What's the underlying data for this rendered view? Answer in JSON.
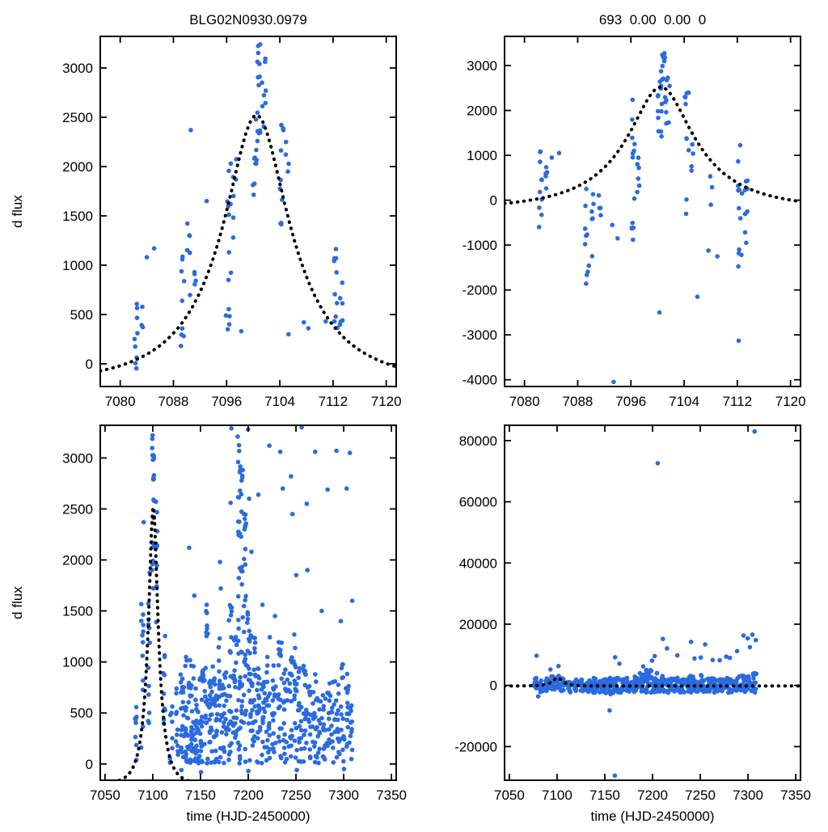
{
  "figure": {
    "background": "#ffffff",
    "style": {
      "point_color": "#2a6be0",
      "model_color": "#000000",
      "point_radius": 2.8,
      "frame_color": "#000000"
    }
  },
  "chart_data": [
    {
      "id": "panel-top-left",
      "type": "scatter",
      "title": "BLG02N0930.0979",
      "xlabel": "",
      "ylabel": "d flux",
      "xlim": [
        7077,
        7121.5
      ],
      "ylim": [
        -230,
        3320
      ],
      "xticks": [
        7080,
        7088,
        7096,
        7104,
        7112,
        7120
      ],
      "yticks": [
        0,
        500,
        1000,
        1500,
        2000,
        2500,
        3000
      ],
      "model": {
        "type": "paczynski",
        "t0": 7100.5,
        "tE": 14,
        "u0": 0.35,
        "fs": 1369,
        "offset": -200
      },
      "clusters_format": [
        "x",
        "xspread",
        "n",
        "ymin",
        "ymax"
      ],
      "clusters": [
        [
          7082.4,
          0.25,
          9,
          -80,
          700
        ],
        [
          7083.3,
          0.15,
          3,
          250,
          650
        ],
        [
          7089.4,
          0.3,
          9,
          150,
          1120
        ],
        [
          7090.3,
          0.25,
          6,
          550,
          1620
        ],
        [
          7091.3,
          0.2,
          4,
          600,
          1000
        ],
        [
          7096.4,
          0.3,
          13,
          300,
          2230
        ],
        [
          7097.2,
          0.25,
          6,
          1200,
          2150
        ],
        [
          7100.2,
          0.3,
          10,
          1650,
          2600
        ],
        [
          7100.8,
          0.3,
          14,
          2250,
          3240
        ],
        [
          7101.6,
          0.3,
          8,
          2300,
          3100
        ],
        [
          7104.3,
          0.3,
          10,
          1300,
          2620
        ],
        [
          7105.1,
          0.25,
          4,
          1900,
          2500
        ],
        [
          7112.4,
          0.3,
          10,
          350,
          1260
        ],
        [
          7113.3,
          0.25,
          6,
          380,
          1000
        ]
      ],
      "points": [
        [
          7084.0,
          1080
        ],
        [
          7085.1,
          1170
        ],
        [
          7090.6,
          2370
        ],
        [
          7093.0,
          1650
        ],
        [
          7095.9,
          490
        ],
        [
          7098.2,
          330
        ],
        [
          7107.6,
          420
        ],
        [
          7108.3,
          360
        ],
        [
          7110.9,
          430
        ],
        [
          7105.3,
          300
        ]
      ]
    },
    {
      "id": "panel-top-right",
      "type": "scatter",
      "title": "693  0.00  0.00  0",
      "xlabel": "",
      "ylabel": "",
      "xlim": [
        7077,
        7121.5
      ],
      "ylim": [
        -4150,
        3650
      ],
      "xticks": [
        7080,
        7088,
        7096,
        7104,
        7112,
        7120
      ],
      "yticks": [
        -4000,
        -3000,
        -2000,
        -1000,
        0,
        1000,
        2000,
        3000
      ],
      "model": {
        "type": "paczynski",
        "t0": 7100.5,
        "tE": 14,
        "u0": 0.35,
        "fs": 1369,
        "offset": -200
      },
      "clusters_format": [
        "x",
        "xspread",
        "n",
        "ymin",
        "ymax"
      ],
      "clusters": [
        [
          7082.4,
          0.25,
          10,
          -750,
          1100
        ],
        [
          7083.3,
          0.2,
          5,
          -350,
          820
        ],
        [
          7089.4,
          0.3,
          10,
          -2100,
          700
        ],
        [
          7090.3,
          0.25,
          6,
          -1350,
          600
        ],
        [
          7091.3,
          0.2,
          4,
          -800,
          300
        ],
        [
          7096.4,
          0.3,
          13,
          -1050,
          2400
        ],
        [
          7097.2,
          0.25,
          6,
          0,
          1750
        ],
        [
          7100.3,
          0.3,
          12,
          1150,
          3000
        ],
        [
          7100.9,
          0.3,
          12,
          2000,
          3560
        ],
        [
          7101.6,
          0.3,
          7,
          1450,
          2850
        ],
        [
          7104.4,
          0.3,
          10,
          -350,
          2400
        ],
        [
          7105.1,
          0.25,
          4,
          450,
          1500
        ],
        [
          7107.9,
          0.3,
          4,
          -1350,
          850
        ],
        [
          7112.4,
          0.3,
          12,
          -1550,
          1250
        ],
        [
          7113.3,
          0.25,
          8,
          -1050,
          720
        ]
      ],
      "points": [
        [
          7093.2,
          -550
        ],
        [
          7093.4,
          -4050
        ],
        [
          7100.3,
          -2500
        ],
        [
          7085.2,
          1050
        ],
        [
          7084.1,
          950
        ],
        [
          7094.0,
          -850
        ],
        [
          7109.0,
          -1250
        ],
        [
          7112.2,
          -3130
        ],
        [
          7106.0,
          -2150
        ]
      ]
    },
    {
      "id": "panel-bottom-left",
      "type": "scatter",
      "title": "",
      "xlabel": "time (HJD-2450000)",
      "ylabel": "d flux",
      "xlim": [
        7045,
        7355
      ],
      "ylim": [
        -160,
        3320
      ],
      "xticks": [
        7050,
        7100,
        7150,
        7200,
        7250,
        7300,
        7350
      ],
      "yticks": [
        0,
        500,
        1000,
        1500,
        2000,
        2500,
        3000
      ],
      "model": {
        "type": "paczynski",
        "t0": 7100.5,
        "tE": 14,
        "u0": 0.35,
        "fs": 1369,
        "offset": -200
      },
      "clusters_format": [
        "x",
        "xspread",
        "n",
        "ymin",
        "ymax"
      ],
      "clusters": [
        [
          7082,
          1.0,
          8,
          -80,
          700
        ],
        [
          7089,
          1.2,
          12,
          100,
          1620
        ],
        [
          7096,
          1.0,
          12,
          300,
          2230
        ],
        [
          7100,
          0.8,
          16,
          1500,
          3240
        ],
        [
          7101.5,
          0.5,
          6,
          2300,
          3100
        ],
        [
          7104,
          0.8,
          10,
          1300,
          2620
        ],
        [
          7112,
          1.0,
          10,
          350,
          1260
        ],
        [
          7119,
          1.5,
          8,
          0,
          600
        ],
        [
          7125,
          1.5,
          10,
          0,
          750
        ],
        [
          7131,
          2.0,
          22,
          0,
          900
        ],
        [
          7136,
          2.0,
          26,
          0,
          1050
        ],
        [
          7141,
          2.0,
          26,
          0,
          1100
        ],
        [
          7146,
          2.0,
          22,
          0,
          800
        ],
        [
          7151,
          2.0,
          26,
          0,
          950
        ],
        [
          7156,
          2.0,
          22,
          0,
          1500
        ],
        [
          7161,
          2.0,
          26,
          0,
          1000
        ],
        [
          7166,
          2.0,
          22,
          0,
          850
        ],
        [
          7171,
          2.0,
          22,
          0,
          1250
        ],
        [
          7176,
          2.0,
          20,
          0,
          900
        ],
        [
          7181,
          2.0,
          24,
          0,
          1600
        ],
        [
          7186,
          2.0,
          22,
          0,
          1300
        ],
        [
          7190.5,
          1.2,
          34,
          0,
          3280
        ],
        [
          7193.5,
          1.0,
          22,
          400,
          3250
        ],
        [
          7196.5,
          1.2,
          26,
          0,
          2500
        ],
        [
          7201,
          2.0,
          26,
          0,
          1600
        ],
        [
          7206,
          2.0,
          22,
          0,
          1250
        ],
        [
          7211,
          2.0,
          22,
          0,
          1100
        ],
        [
          7216,
          2.0,
          18,
          0,
          950
        ],
        [
          7221,
          2.0,
          22,
          0,
          1250
        ],
        [
          7227,
          2.0,
          18,
          0,
          1000
        ],
        [
          7233,
          2.0,
          22,
          0,
          1300
        ],
        [
          7239,
          2.0,
          18,
          0,
          950
        ],
        [
          7244,
          2.0,
          18,
          0,
          1050
        ],
        [
          7249,
          2.0,
          18,
          0,
          1300
        ],
        [
          7254,
          2.0,
          18,
          0,
          950
        ],
        [
          7259,
          2.0,
          18,
          0,
          1000
        ],
        [
          7264,
          2.0,
          14,
          0,
          800
        ],
        [
          7269,
          2.0,
          16,
          0,
          1000
        ],
        [
          7274,
          2.0,
          14,
          0,
          750
        ],
        [
          7279,
          2.0,
          14,
          0,
          900
        ],
        [
          7284,
          2.0,
          14,
          0,
          800
        ],
        [
          7289,
          2.0,
          14,
          0,
          900
        ],
        [
          7294,
          2.0,
          14,
          0,
          800
        ],
        [
          7299,
          2.0,
          14,
          0,
          1000
        ],
        [
          7304,
          2.0,
          14,
          0,
          900
        ],
        [
          7308,
          1.0,
          10,
          0,
          700
        ]
      ],
      "points": [
        [
          7090.5,
          2370
        ],
        [
          7138.2,
          2120
        ],
        [
          7143.5,
          1650
        ],
        [
          7156.5,
          1560
        ],
        [
          7170.4,
          1980
        ],
        [
          7171.2,
          1720
        ],
        [
          7181.5,
          2560
        ],
        [
          7182.3,
          3290
        ],
        [
          7189.0,
          3210
        ],
        [
          7191.2,
          2860
        ],
        [
          7199.8,
          3280
        ],
        [
          7200.9,
          2600
        ],
        [
          7203.4,
          2080
        ],
        [
          7210.6,
          2640
        ],
        [
          7214.9,
          1560
        ],
        [
          7222.1,
          3120
        ],
        [
          7228.0,
          1450
        ],
        [
          7233.5,
          3060
        ],
        [
          7236.2,
          2700
        ],
        [
          7244.8,
          2820
        ],
        [
          7246.3,
          2450
        ],
        [
          7250.2,
          1850
        ],
        [
          7256.0,
          3300
        ],
        [
          7261.3,
          2550
        ],
        [
          7262.0,
          1900
        ],
        [
          7270.1,
          3060
        ],
        [
          7277.0,
          1500
        ],
        [
          7283.2,
          2690
        ],
        [
          7292.4,
          3070
        ],
        [
          7297.0,
          1400
        ],
        [
          7303.1,
          2700
        ],
        [
          7306.5,
          3050
        ],
        [
          7308.9,
          1600
        ],
        [
          7130.0,
          -60
        ],
        [
          7150.5,
          -80
        ],
        [
          7200.2,
          -70
        ],
        [
          7250.8,
          -60
        ],
        [
          7300.4,
          -50
        ]
      ]
    },
    {
      "id": "panel-bottom-right",
      "type": "scatter",
      "title": "",
      "xlabel": "time (HJD-2450000)",
      "ylabel": "",
      "xlim": [
        7045,
        7355
      ],
      "ylim": [
        -31000,
        85000
      ],
      "xticks": [
        7050,
        7100,
        7150,
        7200,
        7250,
        7300,
        7350
      ],
      "yticks": [
        -20000,
        0,
        20000,
        40000,
        60000,
        80000
      ],
      "model": {
        "type": "paczynski",
        "t0": 7100.5,
        "tE": 14,
        "u0": 0.35,
        "fs": 1369,
        "offset": -200
      },
      "clusters_format": [
        "x",
        "xspread",
        "n",
        "ymin",
        "ymax"
      ],
      "clusters": [
        [
          7077,
          2,
          12,
          -2500,
          2500
        ],
        [
          7083,
          2,
          14,
          -2500,
          2000
        ],
        [
          7090,
          2,
          14,
          -2000,
          2500
        ],
        [
          7096,
          2,
          14,
          -1500,
          3000
        ],
        [
          7101,
          2,
          14,
          -1000,
          3500
        ],
        [
          7105,
          2,
          12,
          -2000,
          2500
        ],
        [
          7112,
          2,
          14,
          -2500,
          2000
        ],
        [
          7119,
          2,
          12,
          -2000,
          2000
        ],
        [
          7126,
          2,
          14,
          -2000,
          2000
        ],
        [
          7133,
          3,
          22,
          -2500,
          2000
        ],
        [
          7140,
          3,
          22,
          -2500,
          2500
        ],
        [
          7147,
          3,
          20,
          -2500,
          2000
        ],
        [
          7154,
          3,
          22,
          -3000,
          2500
        ],
        [
          7161,
          3,
          22,
          -2500,
          2500
        ],
        [
          7168,
          3,
          20,
          -2500,
          2000
        ],
        [
          7175,
          3,
          20,
          -2000,
          2500
        ],
        [
          7182,
          3,
          22,
          -2500,
          3000
        ],
        [
          7189,
          3,
          22,
          -2000,
          4000
        ],
        [
          7196,
          3,
          24,
          -2500,
          5000
        ],
        [
          7203,
          3,
          24,
          -2500,
          4000
        ],
        [
          7210,
          3,
          22,
          -2500,
          3500
        ],
        [
          7217,
          3,
          20,
          -2500,
          2500
        ],
        [
          7224,
          3,
          20,
          -2000,
          2500
        ],
        [
          7231,
          3,
          20,
          -2500,
          3000
        ],
        [
          7238,
          3,
          20,
          -2500,
          3500
        ],
        [
          7245,
          3,
          20,
          -2000,
          3000
        ],
        [
          7252,
          3,
          20,
          -2500,
          3500
        ],
        [
          7259,
          3,
          18,
          -2000,
          2500
        ],
        [
          7266,
          3,
          18,
          -2500,
          2500
        ],
        [
          7273,
          3,
          18,
          -2000,
          3000
        ],
        [
          7280,
          3,
          18,
          -2500,
          3000
        ],
        [
          7287,
          3,
          18,
          -2000,
          2500
        ],
        [
          7294,
          3,
          18,
          -2500,
          3500
        ],
        [
          7301,
          3,
          18,
          -2000,
          3000
        ],
        [
          7307,
          2,
          16,
          -2500,
          4000
        ]
      ],
      "points": [
        [
          7078.5,
          9700
        ],
        [
          7080.2,
          -3600
        ],
        [
          7093.0,
          5200
        ],
        [
          7101.5,
          6300
        ],
        [
          7155.0,
          -8200
        ],
        [
          7160.5,
          -29500
        ],
        [
          7160.8,
          9200
        ],
        [
          7165.3,
          7100
        ],
        [
          7190.2,
          6200
        ],
        [
          7199.5,
          8100
        ],
        [
          7202.3,
          9600
        ],
        [
          7205.4,
          72600
        ],
        [
          7210.8,
          15200
        ],
        [
          7215.2,
          12100
        ],
        [
          7226.0,
          9800
        ],
        [
          7240.3,
          14200
        ],
        [
          7244.0,
          8800
        ],
        [
          7250.6,
          9100
        ],
        [
          7255.1,
          13400
        ],
        [
          7263.0,
          8300
        ],
        [
          7270.4,
          8200
        ],
        [
          7277.2,
          9400
        ],
        [
          7281.0,
          9000
        ],
        [
          7288.5,
          11200
        ],
        [
          7295.3,
          16300
        ],
        [
          7299.8,
          15400
        ],
        [
          7302.0,
          12500
        ],
        [
          7304.6,
          16600
        ],
        [
          7306.9,
          83000
        ],
        [
          7308.2,
          14800
        ]
      ]
    }
  ]
}
